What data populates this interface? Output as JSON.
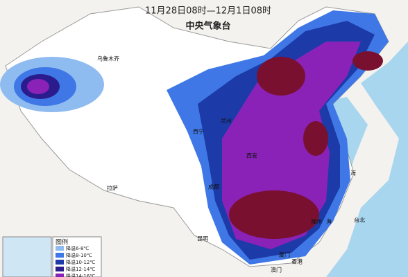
{
  "header": {
    "period": "11月28日08时—12月1日08时",
    "issuer": "中央气象台"
  },
  "cities": [
    "乌鲁木齐",
    "西宁",
    "兰州",
    "西安",
    "成都",
    "拉萨",
    "昆明",
    "福州",
    "台北",
    "厦门",
    "香港",
    "澳门"
  ],
  "sea_labels": [
    "海",
    "海"
  ],
  "legend": {
    "title": "图例",
    "items": [
      {
        "label": "降温6-8℃",
        "color": "#8fbcf0"
      },
      {
        "label": "降温8-10℃",
        "color": "#3f78e6"
      },
      {
        "label": "降温10-12℃",
        "color": "#1c3aa8"
      },
      {
        "label": "降温12-14℃",
        "color": "#2a1c8c"
      },
      {
        "label": "降温14-16℃",
        "color": "#8a22b8"
      }
    ]
  }
}
